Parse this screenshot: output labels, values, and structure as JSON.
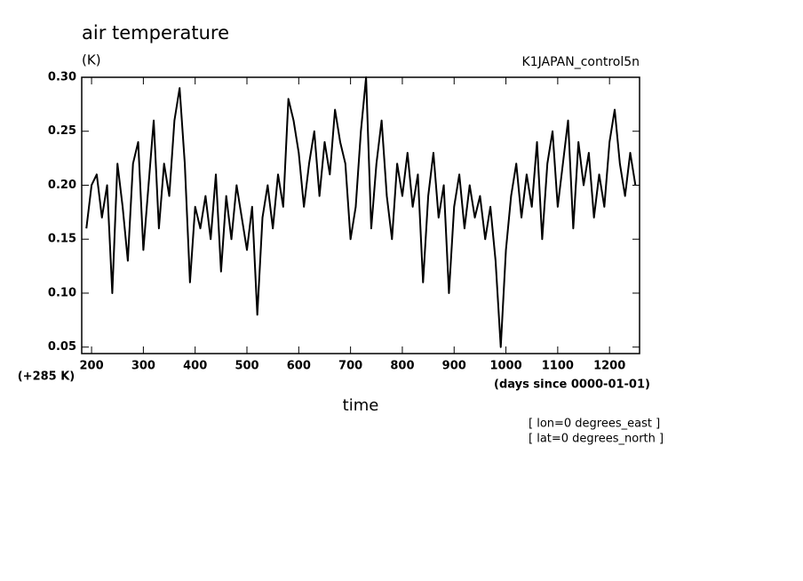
{
  "chart_data": {
    "type": "line",
    "title": "air temperature",
    "units": "(K)",
    "experiment": "K1JAPAN_control5n",
    "offset_label": "(+285 K)",
    "x_label": "time",
    "x_units": "(days since 0000-01-01)",
    "notes": [
      "[ lon=0 degrees_east ]",
      "[ lat=0 degrees_north ]"
    ],
    "x": [
      190,
      200,
      210,
      220,
      230,
      240,
      250,
      260,
      270,
      280,
      290,
      300,
      310,
      320,
      330,
      340,
      350,
      360,
      370,
      380,
      390,
      400,
      410,
      420,
      430,
      440,
      450,
      460,
      470,
      480,
      490,
      500,
      510,
      520,
      530,
      540,
      550,
      560,
      570,
      580,
      590,
      600,
      610,
      620,
      630,
      640,
      650,
      660,
      670,
      680,
      690,
      700,
      710,
      720,
      730,
      740,
      750,
      760,
      770,
      780,
      790,
      800,
      810,
      820,
      830,
      840,
      850,
      860,
      870,
      880,
      890,
      900,
      910,
      920,
      930,
      940,
      950,
      960,
      970,
      980,
      990,
      1000,
      1010,
      1020,
      1030,
      1040,
      1050,
      1060,
      1070,
      1080,
      1090,
      1100,
      1110,
      1120,
      1130,
      1140,
      1150,
      1160,
      1170,
      1180,
      1190,
      1200,
      1210,
      1220,
      1230,
      1240,
      1250
    ],
    "series": [
      {
        "color": "#000000",
        "values": [
          0.16,
          0.2,
          0.21,
          0.17,
          0.2,
          0.1,
          0.22,
          0.18,
          0.13,
          0.22,
          0.24,
          0.14,
          0.2,
          0.26,
          0.16,
          0.22,
          0.19,
          0.26,
          0.29,
          0.22,
          0.11,
          0.18,
          0.16,
          0.19,
          0.15,
          0.21,
          0.12,
          0.19,
          0.15,
          0.2,
          0.17,
          0.14,
          0.18,
          0.08,
          0.17,
          0.2,
          0.16,
          0.21,
          0.18,
          0.28,
          0.26,
          0.23,
          0.18,
          0.22,
          0.25,
          0.19,
          0.24,
          0.21,
          0.27,
          0.24,
          0.22,
          0.15,
          0.18,
          0.25,
          0.3,
          0.16,
          0.22,
          0.26,
          0.19,
          0.15,
          0.22,
          0.19,
          0.23,
          0.18,
          0.21,
          0.11,
          0.19,
          0.23,
          0.17,
          0.2,
          0.1,
          0.18,
          0.21,
          0.16,
          0.2,
          0.17,
          0.19,
          0.15,
          0.18,
          0.13,
          0.05,
          0.14,
          0.19,
          0.22,
          0.17,
          0.21,
          0.18,
          0.24,
          0.15,
          0.22,
          0.25,
          0.18,
          0.22,
          0.26,
          0.16,
          0.24,
          0.2,
          0.23,
          0.17,
          0.21,
          0.18,
          0.24,
          0.27,
          0.22,
          0.19,
          0.23,
          0.2
        ]
      }
    ],
    "xlim": [
      181,
      1258
    ],
    "ylim": [
      0.044,
      0.3
    ],
    "xticks": [
      200,
      300,
      400,
      500,
      600,
      700,
      800,
      900,
      1000,
      1100,
      1200
    ],
    "yticks": [
      0.05,
      {
        "value": 0.1,
        "label": "0.10"
      },
      0.15,
      {
        "value": 0.2,
        "label": "0.20"
      },
      0.25,
      {
        "value": 0.3,
        "label": "0.30"
      }
    ]
  }
}
